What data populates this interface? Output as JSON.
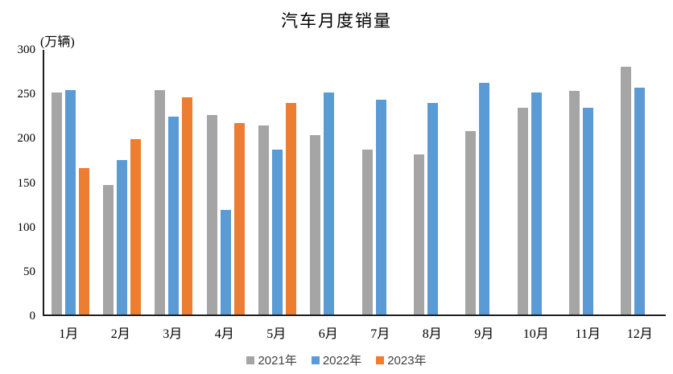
{
  "title": "汽车月度销量",
  "unit_label": "(万辆)",
  "legend": [
    {
      "label": "2021年",
      "color": "#A5A5A5"
    },
    {
      "label": "2022年",
      "color": "#5B9BD5"
    },
    {
      "label": "2023年",
      "color": "#ED7D31"
    }
  ],
  "chart_data": {
    "type": "bar",
    "title": "汽车月度销量",
    "ylabel": "(万辆)",
    "xlabel": "",
    "categories": [
      "1月",
      "2月",
      "3月",
      "4月",
      "5月",
      "6月",
      "7月",
      "8月",
      "9月",
      "10月",
      "11月",
      "12月"
    ],
    "series": [
      {
        "name": "2021年",
        "color": "#A5A5A5",
        "values": [
          250,
          146,
          253,
          225,
          213,
          202,
          186,
          180,
          207,
          233,
          252,
          279
        ]
      },
      {
        "name": "2022年",
        "color": "#5B9BD5",
        "values": [
          253,
          174,
          223,
          118,
          186,
          250,
          242,
          238,
          261,
          250,
          233,
          256
        ]
      },
      {
        "name": "2023年",
        "color": "#ED7D31",
        "values": [
          165,
          198,
          245,
          216,
          238,
          null,
          null,
          null,
          null,
          null,
          null,
          null
        ]
      }
    ],
    "ylim": [
      0,
      300
    ],
    "yticks": [
      0,
      50,
      100,
      150,
      200,
      250,
      300
    ],
    "grid": false,
    "legend_position": "bottom"
  }
}
